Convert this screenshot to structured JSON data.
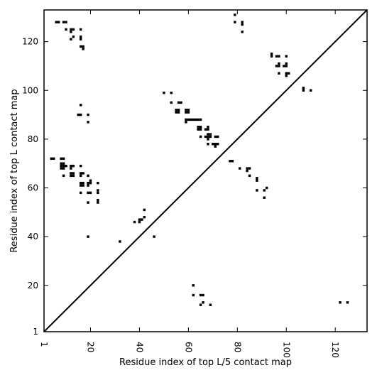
{
  "chart_data": {
    "type": "scatter",
    "xlabel": "Residue index of top L/5 contact map",
    "ylabel": "Residue index of top L contact map",
    "xlim": [
      1,
      133
    ],
    "ylim": [
      1,
      133
    ],
    "x_ticks": [
      1,
      20,
      40,
      60,
      80,
      100,
      120
    ],
    "y_ticks": [
      1,
      20,
      40,
      60,
      80,
      100,
      120
    ],
    "grid": false,
    "marker": "filled-square",
    "colors": {
      "points": "#000000",
      "axes": "#000000",
      "background": "#ffffff"
    },
    "diagonal": {
      "from": [
        1,
        1
      ],
      "to": [
        133,
        133
      ]
    },
    "series": [
      {
        "points": [
          [
            6,
            128
          ],
          [
            7,
            128
          ],
          [
            9,
            128
          ],
          [
            10,
            128
          ],
          [
            10,
            125
          ],
          [
            12,
            125
          ],
          [
            13,
            125
          ],
          [
            12,
            124
          ],
          [
            13,
            122
          ],
          [
            12,
            121
          ],
          [
            16,
            125
          ],
          [
            16,
            122
          ],
          [
            16,
            121
          ],
          [
            16,
            118
          ],
          [
            17,
            118
          ],
          [
            17,
            117
          ],
          [
            79,
            131
          ],
          [
            79,
            128
          ],
          [
            82,
            128
          ],
          [
            82,
            127
          ],
          [
            82,
            124
          ],
          [
            94,
            115
          ],
          [
            94,
            114
          ],
          [
            96,
            114
          ],
          [
            97,
            114
          ],
          [
            100,
            114
          ],
          [
            96,
            110
          ],
          [
            97,
            110
          ],
          [
            97,
            111
          ],
          [
            99,
            110
          ],
          [
            100,
            111
          ],
          [
            100,
            110
          ],
          [
            97,
            107
          ],
          [
            100,
            107
          ],
          [
            101,
            107
          ],
          [
            100,
            106
          ],
          [
            107,
            101
          ],
          [
            107,
            100
          ],
          [
            110,
            100
          ],
          [
            50,
            99
          ],
          [
            53,
            99
          ],
          [
            53,
            95
          ],
          [
            56,
            95
          ],
          [
            57,
            95
          ],
          [
            55,
            92
          ],
          [
            55,
            91
          ],
          [
            56,
            91
          ],
          [
            56,
            92
          ],
          [
            59,
            92
          ],
          [
            60,
            92
          ],
          [
            59,
            91
          ],
          [
            60,
            91
          ],
          [
            59,
            88
          ],
          [
            60,
            88
          ],
          [
            61,
            88
          ],
          [
            62,
            88
          ],
          [
            63,
            88
          ],
          [
            64,
            88
          ],
          [
            65,
            88
          ],
          [
            59,
            87
          ],
          [
            64,
            85
          ],
          [
            65,
            85
          ],
          [
            64,
            84
          ],
          [
            65,
            84
          ],
          [
            67,
            84
          ],
          [
            68,
            84
          ],
          [
            68,
            85
          ],
          [
            65,
            81
          ],
          [
            67,
            81
          ],
          [
            68,
            81
          ],
          [
            69,
            81
          ],
          [
            68,
            82
          ],
          [
            69,
            82
          ],
          [
            68,
            80
          ],
          [
            71,
            81
          ],
          [
            72,
            81
          ],
          [
            68,
            78
          ],
          [
            70,
            78
          ],
          [
            71,
            78
          ],
          [
            72,
            78
          ],
          [
            71,
            77
          ],
          [
            16,
            94
          ],
          [
            15,
            90
          ],
          [
            16,
            90
          ],
          [
            19,
            90
          ],
          [
            19,
            87
          ],
          [
            77,
            71
          ],
          [
            78,
            71
          ],
          [
            4,
            72
          ],
          [
            5,
            72
          ],
          [
            8,
            72
          ],
          [
            9,
            72
          ],
          [
            8,
            70
          ],
          [
            9,
            70
          ],
          [
            8,
            69
          ],
          [
            9,
            69
          ],
          [
            10,
            69
          ],
          [
            12,
            69
          ],
          [
            13,
            69
          ],
          [
            12,
            68
          ],
          [
            8,
            68
          ],
          [
            9,
            68
          ],
          [
            16,
            69
          ],
          [
            12,
            66
          ],
          [
            13,
            66
          ],
          [
            12,
            65
          ],
          [
            13,
            65
          ],
          [
            16,
            66
          ],
          [
            17,
            66
          ],
          [
            16,
            65
          ],
          [
            19,
            65
          ],
          [
            9,
            65
          ],
          [
            16,
            62
          ],
          [
            17,
            62
          ],
          [
            16,
            61
          ],
          [
            17,
            61
          ],
          [
            19,
            62
          ],
          [
            20,
            62
          ],
          [
            20,
            63
          ],
          [
            19,
            61
          ],
          [
            23,
            62
          ],
          [
            16,
            58
          ],
          [
            20,
            58
          ],
          [
            19,
            58
          ],
          [
            23,
            59
          ],
          [
            23,
            58
          ],
          [
            23,
            55
          ],
          [
            23,
            54
          ],
          [
            19,
            54
          ],
          [
            19,
            40
          ],
          [
            81,
            68
          ],
          [
            84,
            68
          ],
          [
            85,
            68
          ],
          [
            84,
            67
          ],
          [
            85,
            65
          ],
          [
            88,
            64
          ],
          [
            88,
            63
          ],
          [
            92,
            60
          ],
          [
            91,
            59
          ],
          [
            88,
            59
          ],
          [
            91,
            56
          ],
          [
            42,
            51
          ],
          [
            42,
            48
          ],
          [
            38,
            46
          ],
          [
            40,
            47
          ],
          [
            41,
            47
          ],
          [
            40,
            46
          ],
          [
            46,
            40
          ],
          [
            32,
            38
          ],
          [
            62,
            20
          ],
          [
            62,
            16
          ],
          [
            65,
            16
          ],
          [
            66,
            16
          ],
          [
            65,
            12
          ],
          [
            66,
            13
          ],
          [
            69,
            12
          ],
          [
            122,
            13
          ],
          [
            125,
            13
          ]
        ]
      }
    ]
  }
}
